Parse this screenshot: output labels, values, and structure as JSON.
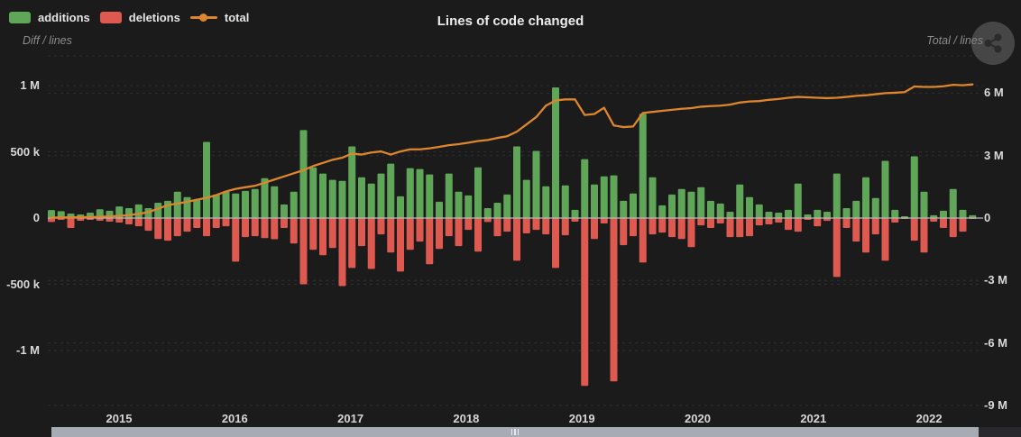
{
  "header": {
    "title": "Lines of code changed",
    "legend": [
      {
        "label": "additions",
        "color": "#5fa659",
        "marker": "rect"
      },
      {
        "label": "deletions",
        "color": "#de5a50",
        "marker": "rect"
      },
      {
        "label": "total",
        "color": "#dd862d",
        "marker": "line-dot"
      }
    ]
  },
  "axes": {
    "left": {
      "caption": "Diff / lines",
      "tick_labels": [
        "1 M",
        "500 k",
        "0",
        "-500 k",
        "-1 M"
      ],
      "tick_values_k": [
        1000,
        500,
        0,
        -500,
        -1000
      ]
    },
    "right": {
      "caption": "Total / lines",
      "tick_labels": [
        "6 M",
        "3 M",
        "0",
        "-3 M",
        "-6 M",
        "-9 M"
      ],
      "tick_values_m": [
        6,
        3,
        0,
        -3,
        -6,
        -9
      ]
    },
    "x": {
      "tick_labels": [
        "2015",
        "2016",
        "2017",
        "2018",
        "2019",
        "2020",
        "2021",
        "2022"
      ]
    }
  },
  "chart_data": {
    "type": "mixed",
    "title": "Lines of code changed",
    "x_unit": "month",
    "x_year_ticks": [
      "2015",
      "2016",
      "2017",
      "2018",
      "2019",
      "2020",
      "2021",
      "2022"
    ],
    "left_ylabel": "Diff / lines",
    "left_ylim_k": [
      -1480,
      1225
    ],
    "right_ylabel": "Total / lines",
    "right_ylim_m": [
      -9.44,
      7.79
    ],
    "grid": "dashed",
    "legend_position": "top-left",
    "series": [
      {
        "name": "additions",
        "type": "bar",
        "axis": "left",
        "unit": "thousand lines",
        "color": "#5fa659",
        "values_k": [
          60,
          52,
          34,
          27,
          41,
          66,
          55,
          88,
          75,
          103,
          75,
          116,
          130,
          199,
          158,
          137,
          575,
          178,
          199,
          185,
          205,
          219,
          301,
          240,
          103,
          199,
          664,
          383,
          336,
          288,
          281,
          541,
          308,
          260,
          336,
          411,
          164,
          377,
          370,
          329,
          123,
          336,
          199,
          171,
          383,
          75,
          116,
          178,
          541,
          288,
          507,
          240,
          986,
          247,
          62,
          445,
          253,
          315,
          322,
          130,
          185,
          787,
          308,
          96,
          178,
          219,
          199,
          233,
          130,
          110,
          48,
          253,
          158,
          103,
          48,
          41,
          62,
          260,
          27,
          62,
          48,
          336,
          75,
          130,
          308,
          151,
          432,
          62,
          14,
          466,
          199,
          21,
          55,
          219,
          62,
          21
        ]
      },
      {
        "name": "deletions",
        "type": "bar",
        "axis": "left",
        "unit": "thousand lines",
        "color": "#de5a50",
        "values_k": [
          -30,
          -14,
          -75,
          -20,
          -14,
          -20,
          -27,
          -34,
          -48,
          -62,
          -96,
          -158,
          -171,
          -137,
          -103,
          -75,
          -137,
          -75,
          -62,
          -329,
          -144,
          -137,
          -151,
          -160,
          -75,
          -192,
          -500,
          -240,
          -281,
          -226,
          -514,
          -377,
          -212,
          -384,
          -123,
          -260,
          -404,
          -240,
          -178,
          -349,
          -233,
          -137,
          -212,
          -89,
          -253,
          -30,
          -137,
          -103,
          -322,
          -116,
          -89,
          -123,
          -377,
          -130,
          -27,
          -1267,
          -158,
          -41,
          -1233,
          -205,
          -137,
          -336,
          -123,
          -110,
          -144,
          -158,
          -219,
          -55,
          -75,
          -41,
          -144,
          -144,
          -137,
          -55,
          -48,
          -34,
          -89,
          -103,
          -14,
          -62,
          -21,
          -445,
          -75,
          -178,
          -260,
          -123,
          -322,
          -34,
          -7,
          -171,
          -260,
          -27,
          -75,
          -144,
          -103,
          -7
        ]
      },
      {
        "name": "total",
        "type": "line",
        "axis": "right",
        "unit": "million lines",
        "color": "#dd862d",
        "values_m": [
          0.02,
          0.03,
          0.03,
          0.04,
          0.05,
          0.06,
          0.08,
          0.1,
          0.14,
          0.2,
          0.28,
          0.45,
          0.62,
          0.7,
          0.78,
          0.88,
          0.97,
          1.1,
          1.28,
          1.4,
          1.48,
          1.55,
          1.7,
          1.85,
          2.0,
          2.15,
          2.3,
          2.5,
          2.65,
          2.8,
          2.9,
          3.1,
          3.05,
          3.15,
          3.2,
          3.05,
          3.2,
          3.3,
          3.3,
          3.35,
          3.42,
          3.5,
          3.55,
          3.62,
          3.7,
          3.75,
          3.85,
          3.93,
          4.15,
          4.5,
          4.85,
          5.4,
          5.65,
          5.7,
          5.7,
          4.95,
          5.0,
          5.3,
          4.45,
          4.37,
          4.4,
          5.05,
          5.1,
          5.15,
          5.2,
          5.25,
          5.28,
          5.35,
          5.38,
          5.4,
          5.45,
          5.55,
          5.6,
          5.62,
          5.68,
          5.72,
          5.78,
          5.82,
          5.8,
          5.78,
          5.76,
          5.78,
          5.82,
          5.87,
          5.9,
          5.95,
          6.0,
          6.02,
          6.05,
          6.32,
          6.3,
          6.3,
          6.33,
          6.4,
          6.38,
          6.42
        ]
      }
    ]
  },
  "colors": {
    "background": "#1b1b1b",
    "grid": "#2f2f31",
    "zero_line": "#b6b9bd",
    "text": "#e4e4e4",
    "muted_text": "#8d8d8d",
    "scrollbar_thumb": "#a7acb4",
    "scrollbar_track": "#29292d"
  }
}
